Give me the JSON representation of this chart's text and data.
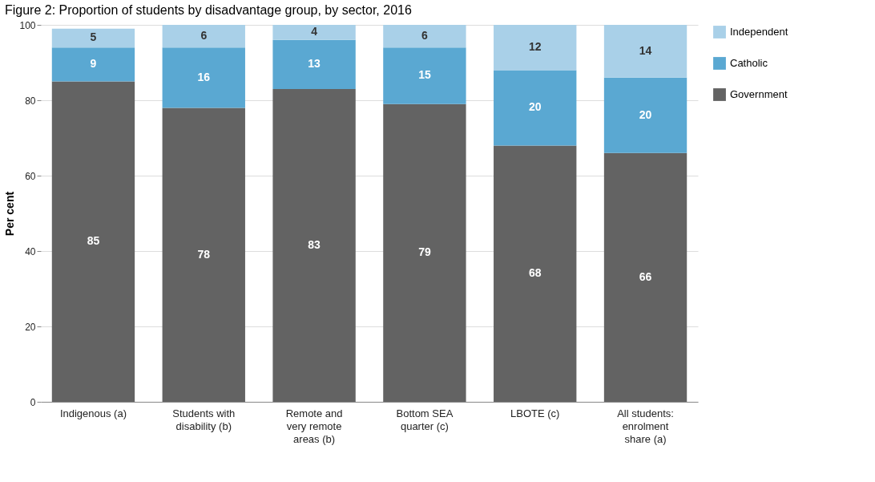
{
  "chart_data": {
    "type": "bar",
    "title": "Figure 2: Proportion of students by disadvantage group, by sector, 2016",
    "ylabel": "Per cent",
    "categories": [
      "Indigenous (a)",
      "Students with\ndisability (b)",
      "Remote and\nvery remote\nareas (b)",
      "Bottom SEA\nquarter (c)",
      "LBOTE (c)",
      "All students:\nenrolment\nshare (a)"
    ],
    "series": [
      {
        "name": "Government",
        "color": "#636363",
        "values": [
          85,
          78,
          83,
          79,
          68,
          66
        ]
      },
      {
        "name": "Catholic",
        "color": "#5aa8d2",
        "values": [
          9,
          16,
          13,
          15,
          20,
          20
        ]
      },
      {
        "name": "Independent",
        "color": "#a9d0e8",
        "values": [
          5,
          6,
          4,
          6,
          12,
          14
        ]
      }
    ],
    "stacked": true,
    "data_labels": true,
    "ylim": [
      0,
      100
    ],
    "yticks": [
      0,
      20,
      40,
      60,
      80,
      100
    ],
    "grid": "y",
    "legend": "right"
  }
}
